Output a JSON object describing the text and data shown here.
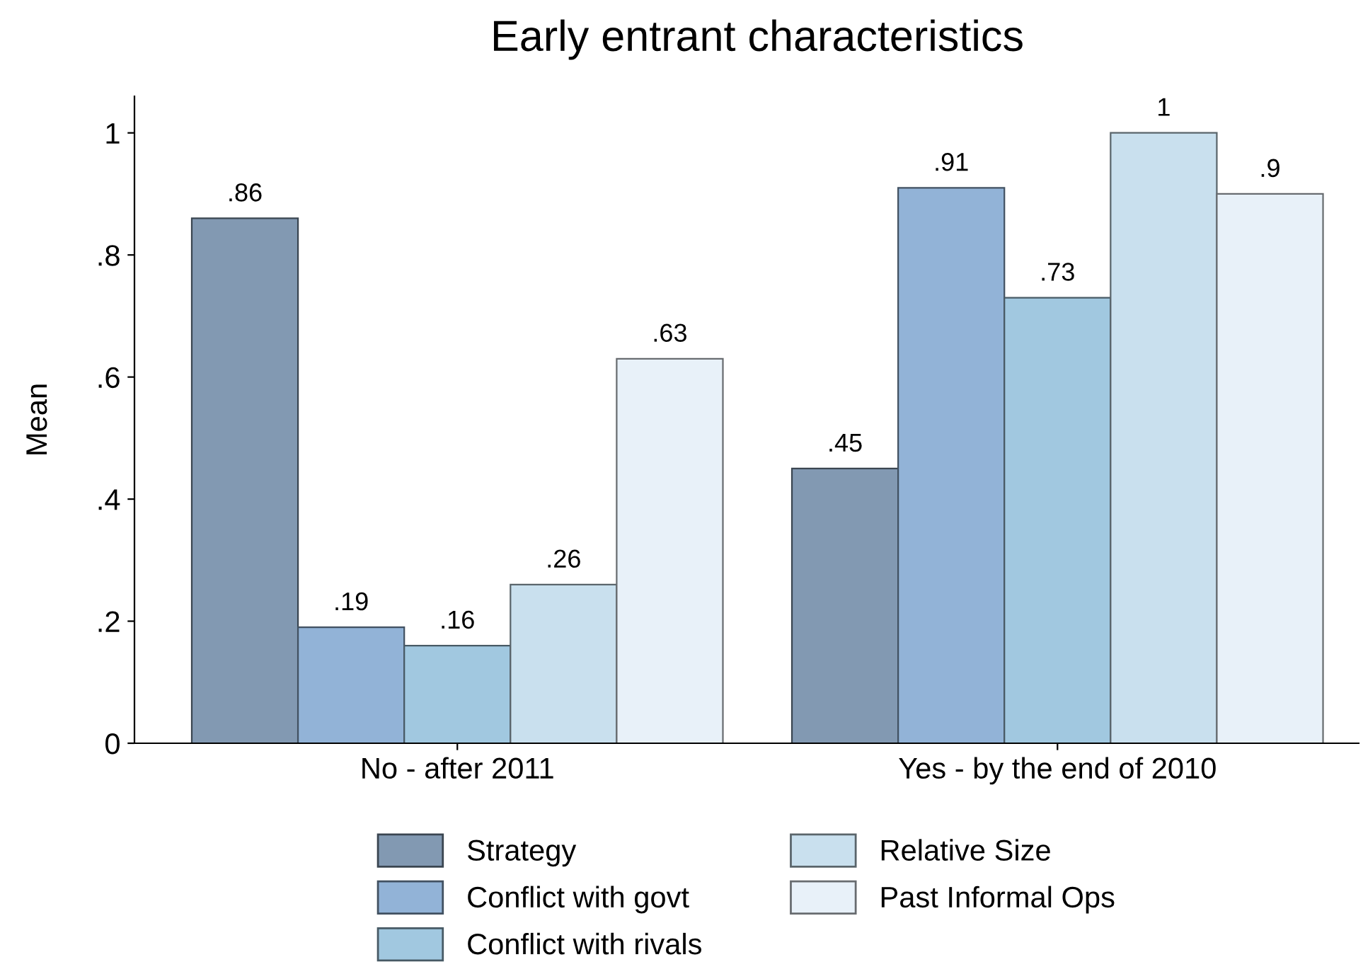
{
  "chart_data": {
    "type": "bar",
    "title": "Early entrant characteristics",
    "ylabel": "Mean",
    "categories": [
      "No - after 2011",
      "Yes - by the end of 2010"
    ],
    "series": [
      {
        "name": "Strategy",
        "color": "#8299b2",
        "values": [
          0.86,
          0.45
        ],
        "value_labels": [
          ".86",
          ".45"
        ]
      },
      {
        "name": "Conflict with govt",
        "color": "#92b3d7",
        "values": [
          0.19,
          0.91
        ],
        "value_labels": [
          ".19",
          ".91"
        ]
      },
      {
        "name": "Conflict with rivals",
        "color": "#a1c8e0",
        "values": [
          0.16,
          0.73
        ],
        "value_labels": [
          ".16",
          ".73"
        ]
      },
      {
        "name": "Relative Size",
        "color": "#c9e0ee",
        "values": [
          0.26,
          1
        ],
        "value_labels": [
          ".26",
          "1"
        ]
      },
      {
        "name": "Past Informal Ops",
        "color": "#e8f1f9",
        "values": [
          0.63,
          0.9
        ],
        "value_labels": [
          ".63",
          ".9"
        ]
      }
    ],
    "ylim": [
      0,
      1.06
    ],
    "yticks": [
      0,
      {
        "value": 0.2,
        "label": ".2"
      },
      {
        "value": 0.4,
        "label": ".4"
      },
      {
        "value": 0.6,
        "label": ".6"
      },
      {
        "value": 0.8,
        "label": ".8"
      },
      1
    ],
    "grid": false,
    "legend": "bottom"
  }
}
